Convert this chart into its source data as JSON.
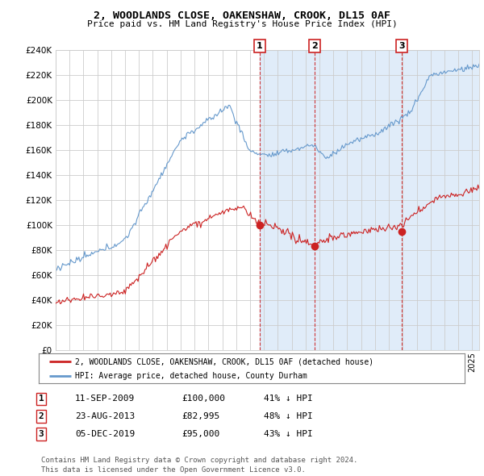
{
  "title1": "2, WOODLANDS CLOSE, OAKENSHAW, CROOK, DL15 0AF",
  "title2": "Price paid vs. HM Land Registry's House Price Index (HPI)",
  "ylim": [
    0,
    240000
  ],
  "yticks": [
    0,
    20000,
    40000,
    60000,
    80000,
    100000,
    120000,
    140000,
    160000,
    180000,
    200000,
    220000,
    240000
  ],
  "bg_color": "#ddeeff",
  "hpi_color": "#6699cc",
  "price_color": "#cc2222",
  "vline_color": "#cc2222",
  "legend_label_price": "2, WOODLANDS CLOSE, OAKENSHAW, CROOK, DL15 0AF (detached house)",
  "legend_label_hpi": "HPI: Average price, detached house, County Durham",
  "sale_points": [
    {
      "date_num": 2009.7,
      "price": 100000,
      "label": "1"
    },
    {
      "date_num": 2013.65,
      "price": 82995,
      "label": "2"
    },
    {
      "date_num": 2019.92,
      "price": 95000,
      "label": "3"
    }
  ],
  "sale_table": [
    {
      "num": "1",
      "date": "11-SEP-2009",
      "price": "£100,000",
      "hpi": "41% ↓ HPI"
    },
    {
      "num": "2",
      "date": "23-AUG-2013",
      "price": "£82,995",
      "hpi": "48% ↓ HPI"
    },
    {
      "num": "3",
      "date": "05-DEC-2019",
      "price": "£95,000",
      "hpi": "43% ↓ HPI"
    }
  ],
  "footer": "Contains HM Land Registry data © Crown copyright and database right 2024.\nThis data is licensed under the Open Government Licence v3.0.",
  "xmin": 1995.0,
  "xmax": 2025.5
}
